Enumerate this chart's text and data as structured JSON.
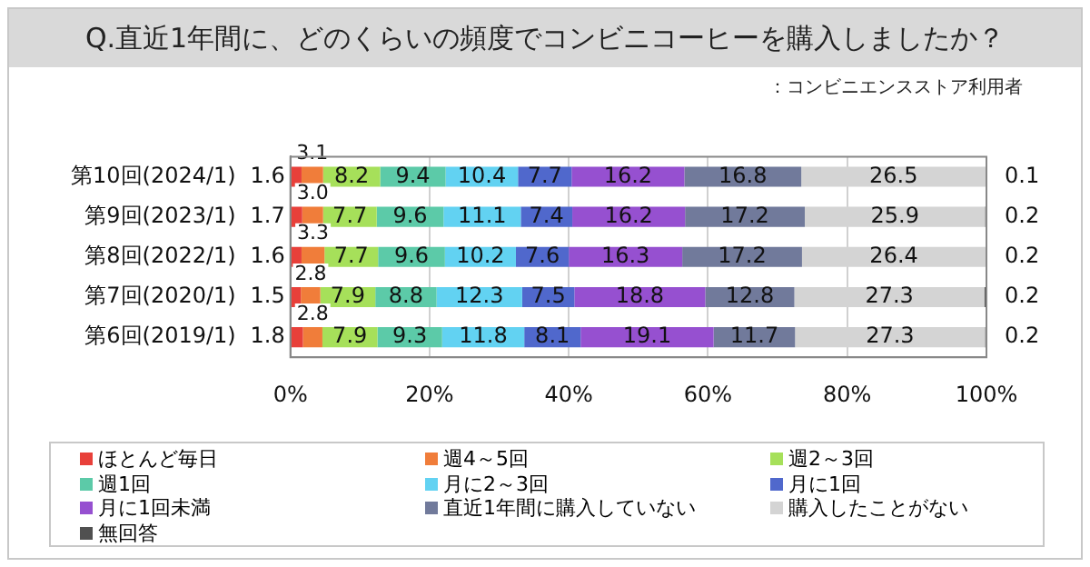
{
  "chart_data": {
    "type": "bar",
    "orientation": "horizontal",
    "stacked": true,
    "title": "Q.直近1年間に、どのくらいの頻度でコンビニコーヒーを購入しましたか？",
    "subtitle": "：コンビニエンスストア利用者",
    "categories": [
      "第10回(2024/1)",
      "第9回(2023/1)",
      "第8回(2022/1)",
      "第7回(2020/1)",
      "第6回(2019/1)"
    ],
    "xlim": [
      0,
      100
    ],
    "xticks": [
      {
        "value": 0,
        "label": "0%"
      },
      {
        "value": 20,
        "label": "20%"
      },
      {
        "value": 40,
        "label": "40%"
      },
      {
        "value": 60,
        "label": "60%"
      },
      {
        "value": 80,
        "label": "80%"
      },
      {
        "value": 100,
        "label": "100%"
      }
    ],
    "grid": "x",
    "legend": "bottom",
    "data_labels": true,
    "series": [
      {
        "name": "ほとんど毎日",
        "color": "#e8403a",
        "values": [
          1.6,
          1.7,
          1.6,
          1.5,
          1.8
        ]
      },
      {
        "name": "週4～5回",
        "color": "#f07d3a",
        "values": [
          3.1,
          3.0,
          3.3,
          2.8,
          2.8
        ],
        "value_labels": [
          "3.1",
          "3.0",
          "3.3",
          "2.8",
          "2.8"
        ]
      },
      {
        "name": "週2～3回",
        "color": "#a6e05a",
        "values": [
          8.2,
          7.7,
          7.7,
          7.9,
          7.9
        ]
      },
      {
        "name": "週1回",
        "color": "#5ccaa8",
        "values": [
          9.4,
          9.6,
          9.6,
          8.8,
          9.3
        ]
      },
      {
        "name": "月に2～3回",
        "color": "#62d2f2",
        "values": [
          10.4,
          11.1,
          10.2,
          12.3,
          11.8
        ]
      },
      {
        "name": "月に1回",
        "color": "#5068cc",
        "values": [
          7.7,
          7.4,
          7.6,
          7.5,
          8.1
        ]
      },
      {
        "name": "月に1回未満",
        "color": "#9650d0",
        "values": [
          16.2,
          16.2,
          16.3,
          18.8,
          19.1
        ]
      },
      {
        "name": "直近1年間に購入していない",
        "color": "#717a9b",
        "values": [
          16.8,
          17.2,
          17.2,
          12.8,
          11.7
        ]
      },
      {
        "name": "購入したことがない",
        "color": "#d4d4d4",
        "values": [
          26.5,
          25.9,
          26.4,
          27.3,
          27.3
        ]
      },
      {
        "name": "無回答",
        "color": "#505050",
        "values": [
          0.1,
          0.2,
          0.2,
          0.2,
          0.2
        ]
      }
    ]
  }
}
